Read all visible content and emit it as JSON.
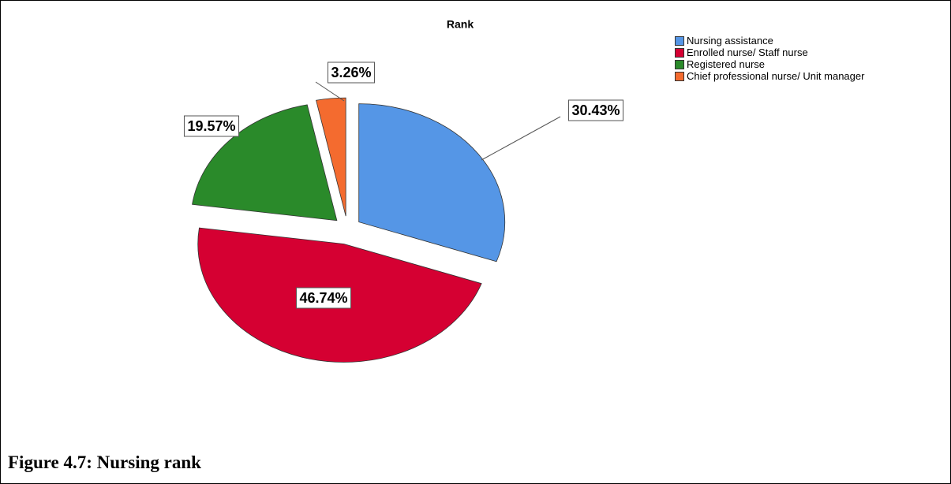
{
  "chart_data": {
    "type": "pie",
    "title": "Rank",
    "categories": [
      "Nursing assistance",
      "Enrolled nurse/ Staff nurse",
      "Registered nurse",
      "Chief professional nurse/ Unit manager"
    ],
    "values": [
      30.43,
      46.74,
      19.57,
      3.26
    ],
    "value_labels": [
      "30.43%",
      "46.74%",
      "19.57%",
      "3.26%"
    ],
    "colors": [
      "#5596e6",
      "#d50032",
      "#2a8a2a",
      "#f46b2f"
    ]
  },
  "caption": "Figure 4.7: Nursing rank"
}
